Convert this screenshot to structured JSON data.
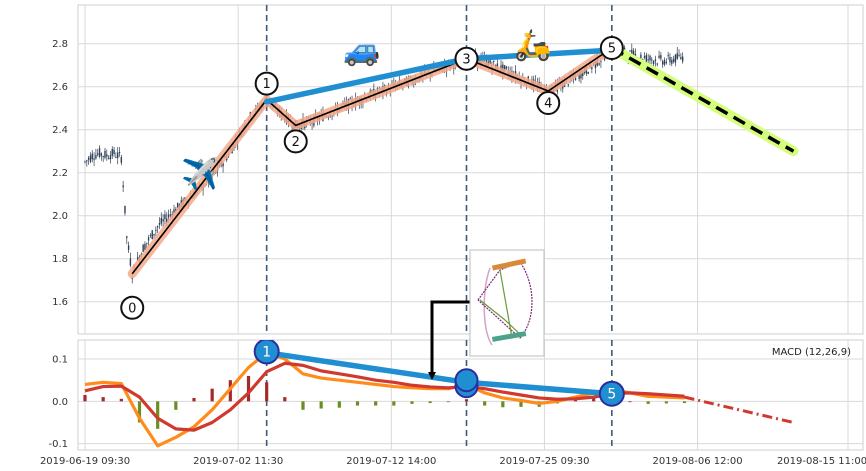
{
  "chart_data": [
    {
      "type": "candlestick",
      "panel": "price",
      "x_tick_labels": [
        "2019-06-19 09:30",
        "2019-07-02 11:30",
        "2019-07-12 14:00",
        "2019-07-25 09:30",
        "2019-08-06 12:00",
        "2019-08-15 11:00"
      ],
      "y_ticks": [
        1.6,
        1.8,
        2.0,
        2.2,
        2.4,
        2.6,
        2.8
      ],
      "ylim": [
        1.45,
        2.98
      ],
      "grid": true,
      "price_path": [
        [
          0.0,
          2.25
        ],
        [
          0.4,
          2.28
        ],
        [
          0.8,
          2.29
        ],
        [
          1.2,
          2.28
        ],
        [
          1.6,
          2.29
        ],
        [
          2.0,
          2.27
        ],
        [
          2.3,
          1.9
        ],
        [
          2.6,
          1.73
        ],
        [
          3.2,
          1.85
        ],
        [
          4.0,
          1.95
        ],
        [
          5.0,
          2.03
        ],
        [
          6.0,
          2.1
        ],
        [
          7.0,
          2.18
        ],
        [
          8.0,
          2.3
        ],
        [
          9.0,
          2.45
        ],
        [
          10.0,
          2.54
        ],
        [
          11.0,
          2.46
        ],
        [
          11.6,
          2.42
        ],
        [
          12.5,
          2.44
        ],
        [
          14.0,
          2.5
        ],
        [
          16.0,
          2.57
        ],
        [
          18.0,
          2.63
        ],
        [
          19.5,
          2.68
        ],
        [
          21.0,
          2.73
        ],
        [
          22.0,
          2.72
        ],
        [
          23.5,
          2.66
        ],
        [
          25.5,
          2.58
        ],
        [
          26.5,
          2.62
        ],
        [
          28.0,
          2.7
        ],
        [
          29.0,
          2.78
        ],
        [
          30.0,
          2.75
        ],
        [
          31.0,
          2.73
        ],
        [
          32.0,
          2.72
        ],
        [
          33.0,
          2.74
        ]
      ],
      "waves": {
        "labels": [
          "0",
          "1",
          "2",
          "3",
          "4",
          "5"
        ],
        "x": [
          2.6,
          10.0,
          11.6,
          21.0,
          25.5,
          29.0
        ],
        "y": [
          1.73,
          2.54,
          2.42,
          2.73,
          2.58,
          2.78
        ]
      },
      "trend_line": {
        "x": [
          10.0,
          21.0,
          29.0
        ],
        "y": [
          2.53,
          2.73,
          2.77
        ]
      },
      "forecast": {
        "x": [
          29.0,
          39.0
        ],
        "y": [
          2.78,
          2.3
        ]
      },
      "vlines_x": [
        10.0,
        21.0,
        29.0
      ],
      "marker_emojis": [
        "✈️",
        "🚙",
        "🛵"
      ]
    },
    {
      "type": "line",
      "panel": "macd",
      "title": "MACD (12,26,9)",
      "y_ticks": [
        -0.1,
        0.0,
        0.1
      ],
      "ylim": [
        -0.115,
        0.145
      ],
      "series": [
        {
          "color": "#ff8c1a",
          "x": [
            0,
            1,
            2,
            3,
            4,
            5,
            6,
            7,
            8,
            9,
            10,
            11,
            12,
            13,
            14,
            15,
            16,
            17,
            18,
            19,
            20,
            21,
            22,
            23,
            24,
            25,
            26,
            27,
            28,
            29,
            30,
            31,
            32,
            33
          ],
          "y": [
            0.04,
            0.045,
            0.042,
            -0.04,
            -0.105,
            -0.085,
            -0.06,
            -0.02,
            0.03,
            0.08,
            0.115,
            0.1,
            0.065,
            0.055,
            0.05,
            0.045,
            0.04,
            0.035,
            0.032,
            0.03,
            0.03,
            0.04,
            0.02,
            0.008,
            0.002,
            -0.005,
            0.0,
            0.01,
            0.02,
            0.028,
            0.02,
            0.012,
            0.01,
            0.008
          ]
        },
        {
          "color": "#d03a2e",
          "x": [
            0,
            1,
            2,
            3,
            4,
            5,
            6,
            7,
            8,
            9,
            10,
            11,
            12,
            13,
            14,
            15,
            16,
            17,
            18,
            19,
            20,
            21,
            22,
            23,
            24,
            25,
            26,
            27,
            28,
            29,
            30,
            31,
            32,
            33
          ],
          "y": [
            0.025,
            0.035,
            0.036,
            0.01,
            -0.04,
            -0.065,
            -0.068,
            -0.05,
            -0.02,
            0.02,
            0.07,
            0.09,
            0.085,
            0.072,
            0.065,
            0.058,
            0.05,
            0.045,
            0.038,
            0.034,
            0.032,
            0.035,
            0.03,
            0.022,
            0.015,
            0.008,
            0.005,
            0.006,
            0.01,
            0.018,
            0.02,
            0.018,
            0.015,
            0.012
          ]
        }
      ],
      "forecast": {
        "x": [
          33,
          39
        ],
        "y": [
          0.01,
          -0.05
        ]
      },
      "histogram": {
        "x": [
          0,
          1,
          2,
          3,
          4,
          5,
          6,
          7,
          8,
          9,
          10,
          11,
          12,
          13,
          14,
          15,
          16,
          17,
          18,
          19,
          20,
          21,
          22,
          23,
          24,
          25,
          26,
          27,
          28,
          29,
          30,
          31,
          32,
          33
        ],
        "y": [
          0.015,
          0.01,
          0.006,
          -0.05,
          -0.065,
          -0.02,
          0.008,
          0.03,
          0.05,
          0.06,
          0.045,
          0.01,
          -0.02,
          -0.017,
          -0.015,
          -0.01,
          -0.01,
          -0.01,
          -0.006,
          -0.004,
          -0.002,
          0.005,
          -0.01,
          -0.014,
          -0.013,
          -0.013,
          -0.005,
          0.004,
          0.01,
          0.01,
          0.0,
          -0.006,
          -0.005,
          -0.004
        ]
      },
      "wave_line": {
        "x": [
          10,
          21,
          29
        ],
        "y": [
          0.115,
          0.045,
          0.018
        ]
      },
      "wave_markers": {
        "labels": [
          "1",
          "",
          "5"
        ],
        "x": [
          10,
          21,
          29
        ],
        "y": [
          0.118,
          0.05,
          0.018
        ]
      }
    }
  ],
  "colors": {
    "wave_path": "#f4a98a",
    "price_line": "#000000",
    "trend_line": "#1f8fd1",
    "forecast_glow": "#d4ff7a",
    "candle": "#2c3e55",
    "vline": "#3e5a78",
    "marker_fill": "#1f8fd1",
    "marker_ring": "#2a2d9e"
  }
}
